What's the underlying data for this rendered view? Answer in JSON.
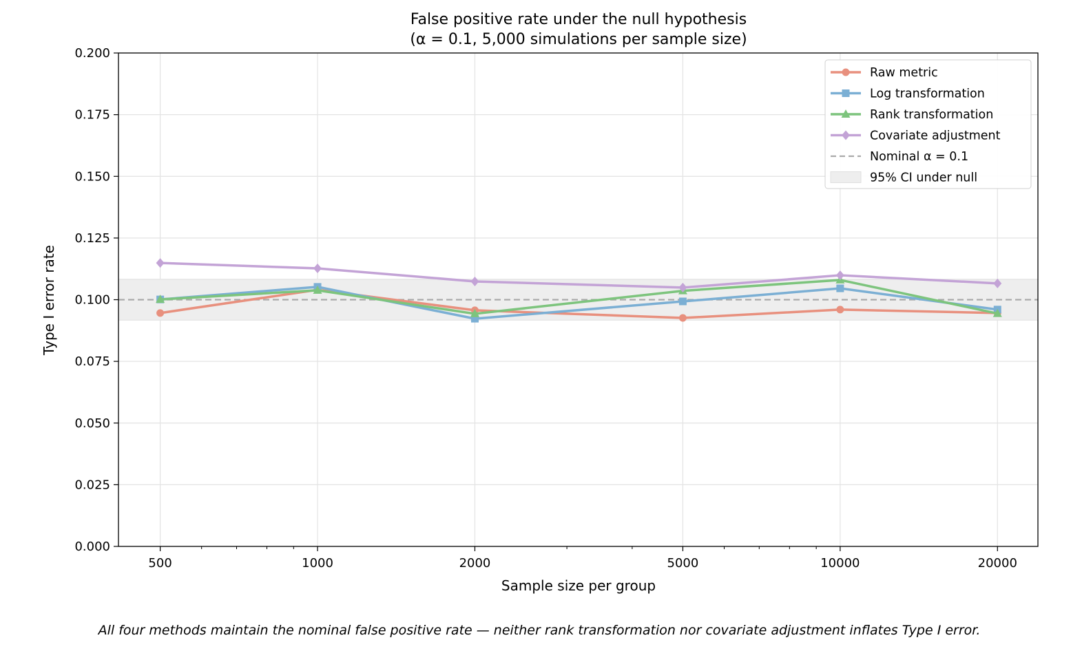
{
  "chart_data": {
    "type": "line",
    "title": "False positive rate under the null hypothesis",
    "subtitle": "(α = 0.1, 5,000 simulations per sample size)",
    "xlabel": "Sample size per group",
    "ylabel": "Type I error rate",
    "xscale": "log",
    "x": [
      500,
      1000,
      2000,
      5000,
      10000,
      20000
    ],
    "x_tick_labels": [
      "500",
      "1000",
      "2000",
      "5000",
      "10000",
      "20000"
    ],
    "xlim": [
      416,
      23900
    ],
    "ylim": [
      0,
      0.2
    ],
    "y_ticks": [
      0,
      0.025,
      0.05,
      0.075,
      0.1,
      0.125,
      0.15,
      0.175,
      0.2
    ],
    "y_tick_labels": [
      "0.000",
      "0.025",
      "0.050",
      "0.075",
      "0.100",
      "0.125",
      "0.150",
      "0.175",
      "0.200"
    ],
    "grid": true,
    "legend_position": "top-right",
    "series": [
      {
        "name": "Raw metric",
        "color": "#e8907e",
        "marker": "circle",
        "values": [
          0.0946,
          0.104,
          0.0957,
          0.0926,
          0.096,
          0.0946
        ]
      },
      {
        "name": "Log transformation",
        "color": "#7bafd4",
        "marker": "square",
        "values": [
          0.1001,
          0.1052,
          0.0923,
          0.0993,
          0.1046,
          0.096
        ]
      },
      {
        "name": "Rank transformation",
        "color": "#7dc47d",
        "marker": "triangle",
        "values": [
          0.1001,
          0.1038,
          0.0943,
          0.1036,
          0.108,
          0.0944
        ]
      },
      {
        "name": "Covariate adjustment",
        "color": "#c3a3d6",
        "marker": "diamond",
        "values": [
          0.1149,
          0.1127,
          0.1074,
          0.1049,
          0.1099,
          0.1066
        ]
      }
    ],
    "reference_line": {
      "name": "Nominal α = 0.1",
      "value": 0.1,
      "color": "#aaaaaa"
    },
    "band": {
      "name": "95% CI under null",
      "low": 0.0917,
      "high": 0.1083,
      "color": "#eeeeee"
    },
    "annotation": "All four methods maintain the nominal false positive rate — neither rank transformation nor covariate adjustment inflates Type I error."
  }
}
